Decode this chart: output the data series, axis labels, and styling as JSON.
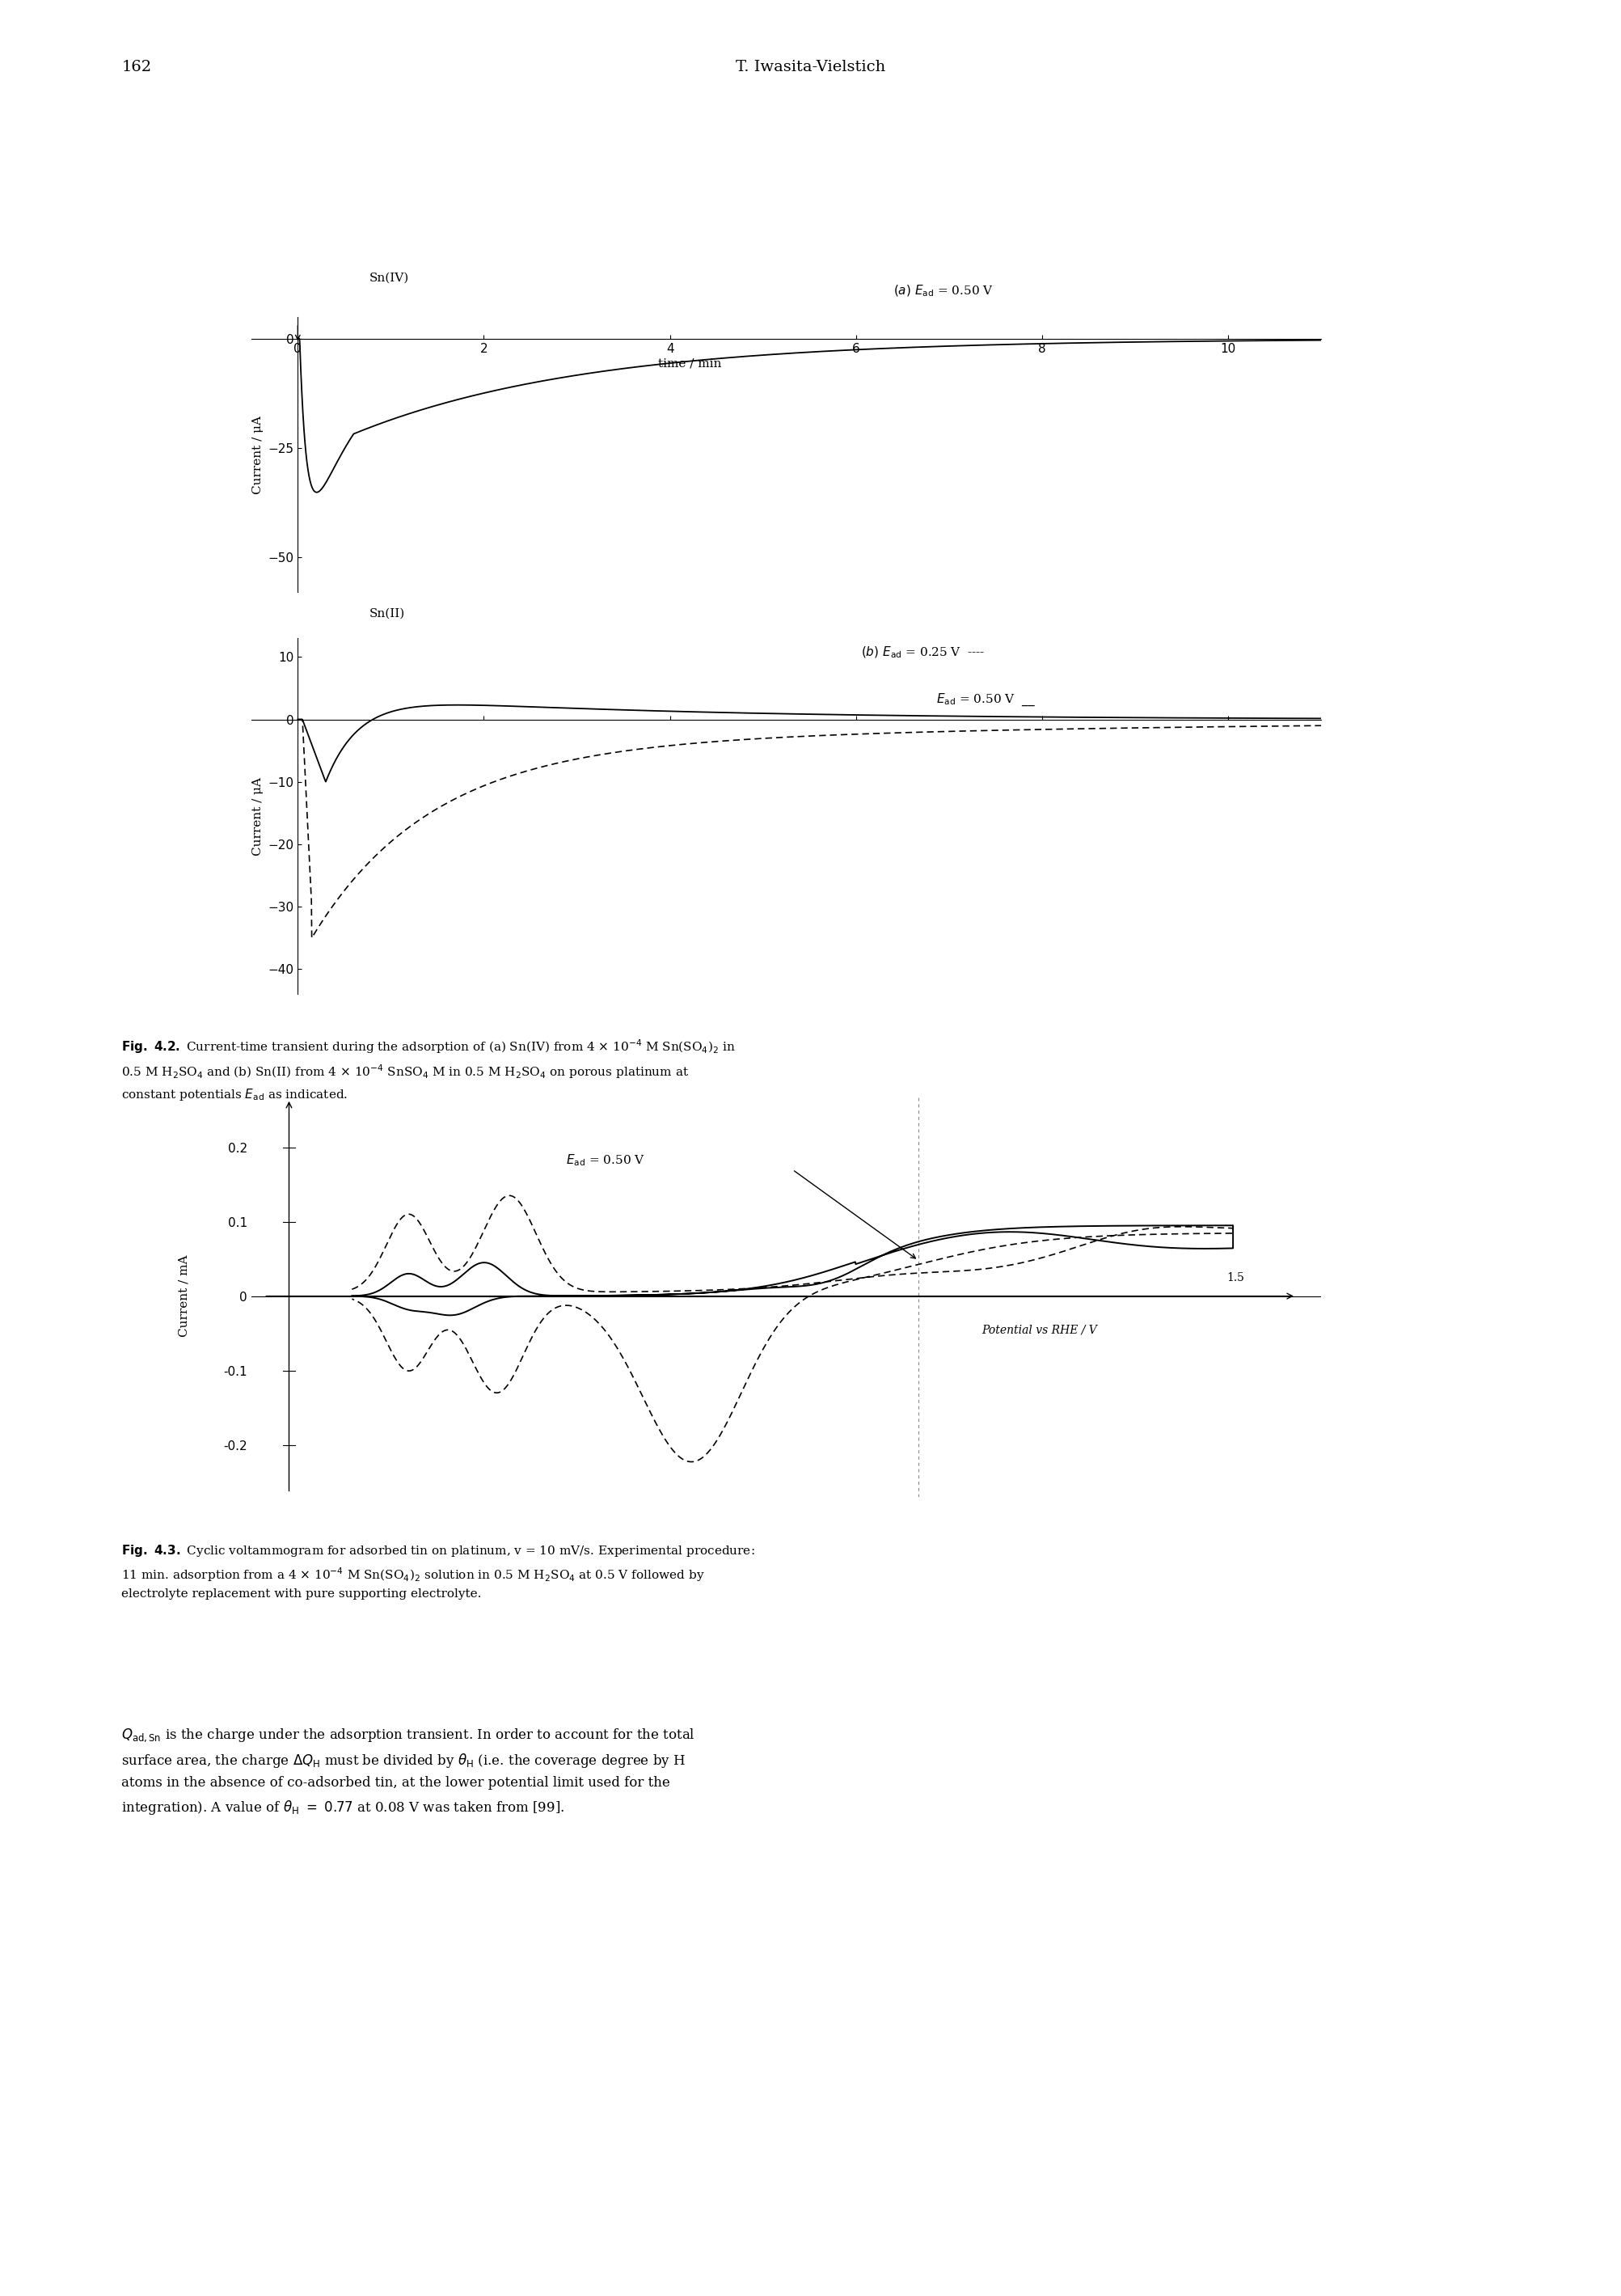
{
  "page_number": "162",
  "header": "T. Iwasita-Vielstich",
  "background_color": "#ffffff",
  "text_color": "#000000",
  "fig42a_label": "Sn(IV)",
  "fig42a_annot": "(a)  Eₐᵈ = 0.50 V",
  "fig42a_xlabel": "time / min",
  "fig42a_yticks": [
    0,
    -25,
    -50
  ],
  "fig42a_xticks": [
    0,
    2,
    4,
    6,
    8,
    10
  ],
  "fig42a_ylim": [
    -58,
    5
  ],
  "fig42a_xlim": [
    -0.5,
    11
  ],
  "fig42b_label": "Sn(II)",
  "fig42b_annot1": "(b)  Eₐᵈ = 0.25 V  ----",
  "fig42b_annot2": "Eₐᵈ = 0.50 V  —",
  "fig42b_yticks": [
    10,
    0,
    -10,
    -20,
    -30,
    -40
  ],
  "fig42b_ylim": [
    -44,
    13
  ],
  "fig42b_xlim": [
    -0.5,
    11
  ],
  "fig43_ylabel": "Current / mA",
  "fig43_xlabel": "Potential vs RHE / V",
  "fig43_yticks": [
    -0.2,
    -0.1,
    0,
    0.1,
    0.2
  ],
  "fig43_ylim": [
    -0.27,
    0.27
  ],
  "fig43_annot": "Eₐᵈ = 0.50 V",
  "fig43_label15": "1.5"
}
